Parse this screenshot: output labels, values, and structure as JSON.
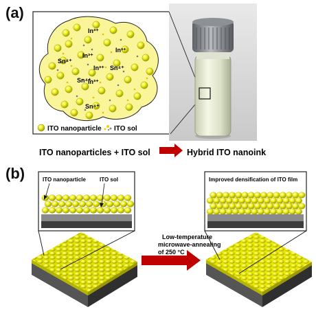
{
  "panel_a": {
    "label": "(a)",
    "ions": [
      "In³⁺",
      "Sn⁴⁺",
      "In³⁺",
      "In³⁺",
      "Sn⁴⁺",
      "In³⁺",
      "Sn⁴⁺",
      "In³⁺",
      "Sn⁴⁺"
    ],
    "legend": {
      "nanoparticle": "ITO nanoparticle",
      "sol": "ITO sol"
    },
    "equation": {
      "left": "ITO nanoparticles + ITO sol",
      "right": "Hybrid ITO nanoink"
    }
  },
  "panel_b": {
    "label": "(b)",
    "inset_left": {
      "nanoparticle_label": "ITO nanoparticle",
      "sol_label": "ITO sol"
    },
    "inset_right": {
      "title": "Improved densification of ITO film"
    },
    "process": {
      "line1": "Low-temperature",
      "line2": "microwave-annealing",
      "line3": "of 250 °C"
    }
  },
  "colors": {
    "particle": "#f2f21a",
    "particle_edge": "#a8a800",
    "sol_blob": "#fbf59a",
    "substrate_top": "#8a8a8a",
    "substrate_side": "#3d3d3d",
    "arrow": "#c00000"
  }
}
